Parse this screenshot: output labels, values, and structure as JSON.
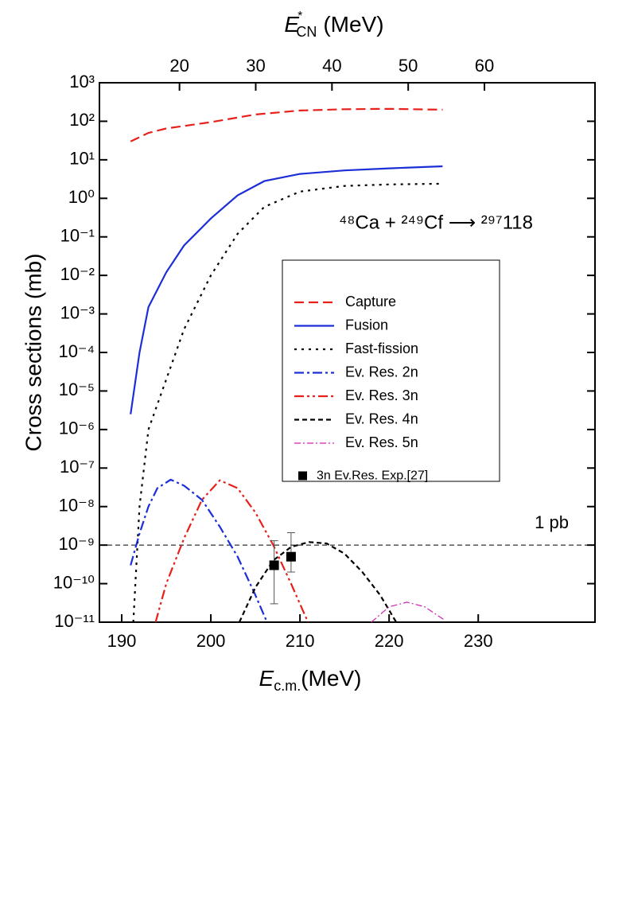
{
  "chart_data": {
    "type": "line",
    "x_label": {
      "symbol": "E",
      "subscript": "c.m.",
      "unit": "(MeV)"
    },
    "x2_label": {
      "symbol": "E",
      "superscript": "*",
      "subscript": "CN",
      "unit": "(MeV)"
    },
    "y_label": "Cross sections (mb)",
    "annotation": "⁴⁸Ca + ²⁴⁹Cf ⟶ ²⁹⁷118",
    "xlim": [
      187.5,
      243.1
    ],
    "xticks": [
      190,
      200,
      210,
      220,
      230
    ],
    "x2lim": [
      9.5,
      74.5
    ],
    "x2ticks": [
      20,
      30,
      40,
      50,
      60
    ],
    "ylim": [
      1e-11,
      1000
    ],
    "log_y": true,
    "yticks": [
      {
        "value": 1000,
        "label": "10³"
      },
      {
        "value": 100,
        "label": "10²"
      },
      {
        "value": 10,
        "label": "10¹"
      },
      {
        "value": 1,
        "label": "10⁰"
      },
      {
        "value": 0.1,
        "label": "10⁻¹"
      },
      {
        "value": 0.01,
        "label": "10⁻²"
      },
      {
        "value": 0.001,
        "label": "10⁻³"
      },
      {
        "value": 0.0001,
        "label": "10⁻⁴"
      },
      {
        "value": 1e-05,
        "label": "10⁻⁵"
      },
      {
        "value": 1e-06,
        "label": "10⁻⁶"
      },
      {
        "value": 1e-07,
        "label": "10⁻⁷"
      },
      {
        "value": 1e-08,
        "label": "10⁻⁸"
      },
      {
        "value": 1e-09,
        "label": "10⁻⁹"
      },
      {
        "value": 1e-10,
        "label": "10⁻¹⁰"
      },
      {
        "value": 1e-11,
        "label": "10⁻¹¹"
      }
    ],
    "reference_line": {
      "value": 1e-09,
      "label": "1 pb"
    },
    "series": [
      {
        "name": "Capture",
        "color": "#e8201c",
        "line_style": "dashed",
        "x": [
          191,
          193,
          195,
          200,
          205,
          210,
          215,
          220,
          226
        ],
        "values": [
          30,
          50,
          65,
          95,
          150,
          190,
          205,
          210,
          200
        ]
      },
      {
        "name": "Fusion",
        "color": "#1c2ed6",
        "line_style": "solid",
        "x": [
          191,
          192,
          193,
          195,
          197,
          200,
          203,
          206,
          210,
          215,
          220,
          226
        ],
        "values": [
          2.5e-06,
          0.0001,
          0.0015,
          0.012,
          0.06,
          0.3,
          1.2,
          2.8,
          4.3,
          5.3,
          6,
          6.8
        ]
      },
      {
        "name": "Fast-fission",
        "color": "#000000",
        "line_style": "dotted",
        "x": [
          191.3,
          192,
          193,
          195,
          197,
          200,
          203,
          206,
          210,
          215,
          220,
          226
        ],
        "values": [
          1e-11,
          1e-08,
          1e-06,
          2e-05,
          0.0004,
          0.01,
          0.12,
          0.6,
          1.5,
          2.1,
          2.3,
          2.4
        ]
      },
      {
        "name": "Ev. Res. 2n",
        "color": "#1c2ed6",
        "line_style": "dash-dot",
        "x": [
          191,
          192,
          193,
          194,
          195.5,
          197,
          199,
          201,
          203,
          205,
          206.3
        ],
        "values": [
          3e-10,
          2e-09,
          1e-08,
          3e-08,
          5e-08,
          3.5e-08,
          1.5e-08,
          3e-09,
          5e-10,
          5e-11,
          1e-11
        ]
      },
      {
        "name": "Ev. Res. 3n",
        "color": "#e8201c",
        "line_style": "dash-dot-dot",
        "x": [
          193.8,
          195,
          197,
          199,
          201,
          203,
          205,
          207,
          209,
          210.9
        ],
        "values": [
          1e-11,
          1e-10,
          1.5e-09,
          1.5e-08,
          4.8e-08,
          3e-08,
          7e-09,
          1e-09,
          1e-10,
          1e-11
        ]
      },
      {
        "name": "Ev. Res. 4n",
        "color": "#000000",
        "line_style": "short-dashed",
        "x": [
          203.2,
          205,
          207,
          209,
          211,
          213,
          215,
          217,
          219,
          220.8
        ],
        "values": [
          1e-11,
          8e-11,
          4e-10,
          9e-10,
          1.2e-09,
          1.1e-09,
          6e-10,
          2e-10,
          5e-11,
          1e-11
        ]
      },
      {
        "name": "Ev. Res. 5n",
        "color": "#d020b0",
        "line_style": "thin-dash-dot",
        "x": [
          218,
          220,
          222,
          224,
          226.3
        ],
        "values": [
          1e-11,
          2.5e-11,
          3.3e-11,
          2.5e-11,
          1.1e-11
        ]
      },
      {
        "name": "3n Ev.Res. Exp.[27]",
        "color": "#000000",
        "line_style": "markers",
        "x": [
          207.1,
          209
        ],
        "values": [
          3e-10,
          5e-10
        ],
        "y_low": [
          3e-11,
          2e-10
        ],
        "y_high": [
          1.3e-09,
          2.1e-09
        ]
      }
    ]
  }
}
